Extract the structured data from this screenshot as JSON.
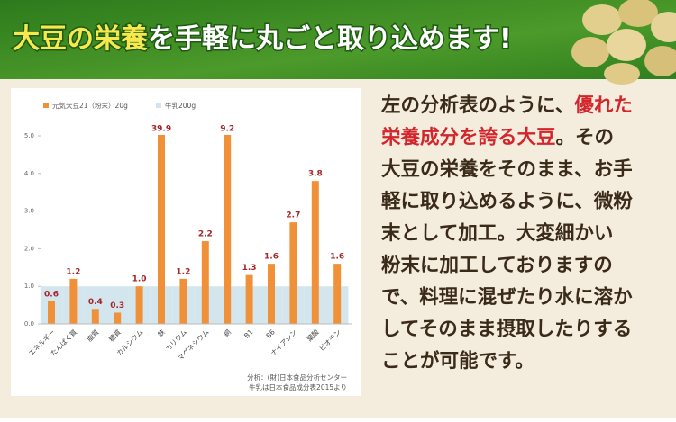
{
  "header": {
    "title_highlight": "大豆の栄養",
    "title_rest": "を手軽に丸ごと取り込めます!"
  },
  "chart_data": {
    "type": "bar",
    "categories": [
      "エネルギー",
      "たんぱく質",
      "脂質",
      "糖質",
      "カルシウム",
      "鉄",
      "カリウム",
      "マグネシウム",
      "銅",
      "B1",
      "B6",
      "ナイアシン",
      "葉酸",
      "ビオチン"
    ],
    "series": [
      {
        "name": "元気大豆21（粉末）20g",
        "color": "#f0913a",
        "values": [
          0.6,
          1.2,
          0.4,
          0.3,
          1.0,
          39.9,
          1.2,
          2.2,
          9.2,
          1.3,
          1.6,
          2.7,
          3.8,
          1.6
        ],
        "value_labels": [
          "0.6",
          "1.2",
          "0.4",
          "0.3",
          "1.0",
          "39.9",
          "1.2",
          "2.2",
          "9.2",
          "1.3",
          "1.6",
          "2.7",
          "3.8",
          "1.6"
        ]
      },
      {
        "name": "牛乳200g",
        "color": "#d3e6ee",
        "values": [
          1,
          1,
          1,
          1,
          1,
          1,
          1,
          1,
          1,
          1,
          1,
          1,
          1,
          1
        ]
      }
    ],
    "ylim": [
      0,
      5
    ],
    "yticks": [
      {
        "value": 0,
        "label": "0.0"
      },
      {
        "value": 1,
        "label": "1.0"
      },
      {
        "value": 2,
        "label": "2.0"
      },
      {
        "value": 3,
        "label": "3.0"
      },
      {
        "value": 4,
        "label": "4.0"
      },
      {
        "value": 5,
        "label": "5.0"
      }
    ],
    "notes": [
      "分析：(財)日本食品分析センター",
      "牛乳は日本食品成分表2015より"
    ]
  },
  "description": {
    "lines": [
      [
        {
          "text": "左の分析表のように、",
          "highlight": false
        },
        {
          "text": "優れた",
          "highlight": true
        }
      ],
      [
        {
          "text": "栄養成分を誇る大豆",
          "highlight": true
        },
        {
          "text": "。その",
          "highlight": false
        }
      ],
      [
        {
          "text": "大豆の栄養をそのまま、お手",
          "highlight": false
        }
      ],
      [
        {
          "text": "軽に取り込めるように、微粉",
          "highlight": false
        }
      ],
      [
        {
          "text": "末として加工。大変細かい",
          "highlight": false
        }
      ],
      [
        {
          "text": "粉末に加工しておりますの",
          "highlight": false
        }
      ],
      [
        {
          "text": "で、料理に混ぜたり水に溶か",
          "highlight": false
        }
      ],
      [
        {
          "text": "してそのまま摂取したりする",
          "highlight": false
        }
      ],
      [
        {
          "text": "ことが可能です。",
          "highlight": false
        }
      ]
    ]
  }
}
